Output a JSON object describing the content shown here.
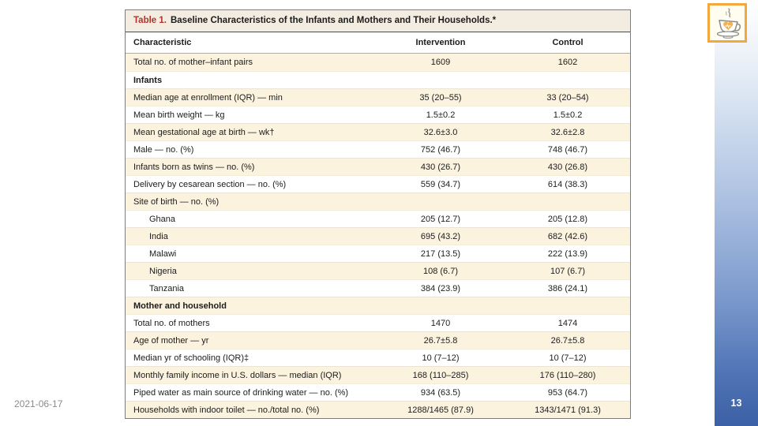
{
  "slide": {
    "date": "2021-06-17",
    "page_number": "13"
  },
  "table": {
    "title_prefix": "Table 1.",
    "title": "Baseline Characteristics of the Infants and Mothers and Their Households.*",
    "columns": [
      "Characteristic",
      "Intervention",
      "Control"
    ],
    "rows": [
      {
        "type": "data",
        "label": "Total no. of mother–infant pairs",
        "intervention": "1609",
        "control": "1602"
      },
      {
        "type": "section",
        "label": "Infants",
        "intervention": "",
        "control": ""
      },
      {
        "type": "data",
        "label": "Median age at enrollment (IQR) — min",
        "intervention": "35 (20–55)",
        "control": "33 (20–54)"
      },
      {
        "type": "data",
        "label": "Mean birth weight — kg",
        "intervention": "1.5±0.2",
        "control": "1.5±0.2"
      },
      {
        "type": "data",
        "label": "Mean gestational age at birth — wk†",
        "intervention": "32.6±3.0",
        "control": "32.6±2.8"
      },
      {
        "type": "data",
        "label": "Male — no. (%)",
        "intervention": "752 (46.7)",
        "control": "748 (46.7)"
      },
      {
        "type": "data",
        "label": "Infants born as twins — no. (%)",
        "intervention": "430 (26.7)",
        "control": "430 (26.8)"
      },
      {
        "type": "data",
        "label": "Delivery by cesarean section — no. (%)",
        "intervention": "559 (34.7)",
        "control": "614 (38.3)"
      },
      {
        "type": "data",
        "label": "Site of birth — no. (%)",
        "intervention": "",
        "control": ""
      },
      {
        "type": "indent",
        "label": "Ghana",
        "intervention": "205 (12.7)",
        "control": "205 (12.8)"
      },
      {
        "type": "indent",
        "label": "India",
        "intervention": "695 (43.2)",
        "control": "682 (42.6)"
      },
      {
        "type": "indent",
        "label": "Malawi",
        "intervention": "217 (13.5)",
        "control": "222 (13.9)"
      },
      {
        "type": "indent",
        "label": "Nigeria",
        "intervention": "108 (6.7)",
        "control": "107 (6.7)"
      },
      {
        "type": "indent",
        "label": "Tanzania",
        "intervention": "384 (23.9)",
        "control": "386 (24.1)"
      },
      {
        "type": "section",
        "label": "Mother and household",
        "intervention": "",
        "control": ""
      },
      {
        "type": "data",
        "label": "Total no. of mothers",
        "intervention": "1470",
        "control": "1474"
      },
      {
        "type": "data",
        "label": "Age of mother — yr",
        "intervention": "26.7±5.8",
        "control": "26.7±5.8"
      },
      {
        "type": "data",
        "label": "Median yr of schooling (IQR)‡",
        "intervention": "10 (7–12)",
        "control": "10 (7–12)"
      },
      {
        "type": "data",
        "label": "Monthly family income in U.S. dollars — median (IQR)",
        "intervention": "168 (110–285)",
        "control": "176 (110–280)"
      },
      {
        "type": "data",
        "label": "Piped water as main source of drinking water — no. (%)",
        "intervention": "934 (63.5)",
        "control": "953 (64.7)"
      },
      {
        "type": "data",
        "label": "Households with indoor toilet — no./total no. (%)",
        "intervention": "1288/1465 (87.9)",
        "control": "1343/1471 (91.3)"
      }
    ]
  },
  "logo": {
    "icon": "coffee-cup-with-heart"
  },
  "colors": {
    "table_title_red": "#b5332c",
    "title_bar_bg": "#f2ece1",
    "row_shade_bg": "#fbf3de",
    "sidebar_blue_bottom": "#3d60a6",
    "logo_border_orange": "#f3a83d",
    "heart_orange": "#f6b14d",
    "date_gray": "#8a8a8a"
  }
}
